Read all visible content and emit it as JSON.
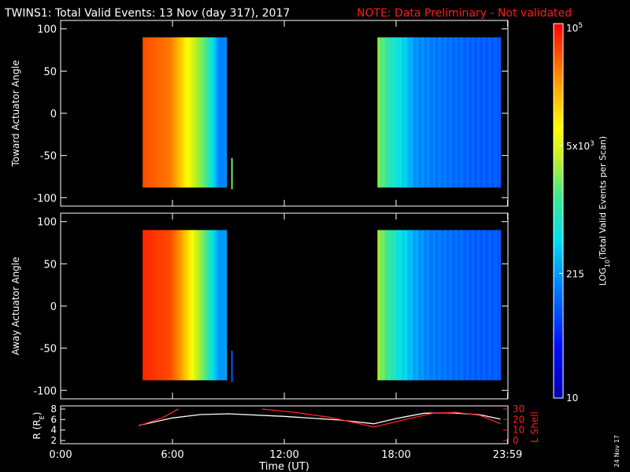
{
  "header": {
    "title": "TWINS1: Total Valid Events: 13 Nov (day 317), 2017",
    "note": "NOTE: Data Preliminary - Not validated"
  },
  "colors": {
    "note": "#ff1a1a",
    "lshell": "#ff2020",
    "radius": "#ffffff",
    "frame": "#ffffff"
  },
  "colorbar": {
    "title_prefix": "LOG",
    "title_sub": "10",
    "title_suffix": "(Total Valid Events per Scan)",
    "ticks": [
      {
        "label": "10",
        "value": 10
      },
      {
        "label": "215",
        "value": 215
      },
      {
        "label": "5x10",
        "sup": "3",
        "value": 5000
      },
      {
        "label": "10",
        "sup": "5",
        "value": 100000
      }
    ],
    "range": [
      10,
      100000
    ],
    "scale": "log"
  },
  "chart_data": [
    {
      "type": "heatmap",
      "ylabel": "Toward Actuator Angle",
      "ylim": [
        -110,
        110
      ],
      "yticks": [
        100,
        50,
        0,
        -50,
        -100
      ],
      "xlim": [
        0,
        24
      ],
      "data_ranges_hours": [
        [
          4.4,
          8.9
        ],
        [
          17.0,
          23.6
        ]
      ],
      "angle_range": [
        -88,
        90
      ],
      "marker": {
        "hour": 9.15,
        "y_range": [
          -90,
          -53
        ]
      },
      "column_profile": [
        [
          4.4,
          4.7
        ],
        [
          5.9,
          4.5
        ],
        [
          6.4,
          4.2
        ],
        [
          6.9,
          3.8
        ],
        [
          7.3,
          3.5
        ],
        [
          7.8,
          3.2
        ],
        [
          8.1,
          2.8
        ],
        [
          8.5,
          2.2
        ],
        [
          17.0,
          3.4
        ],
        [
          17.6,
          3.0
        ],
        [
          18.3,
          2.7
        ],
        [
          19.0,
          2.3
        ],
        [
          19.8,
          2.2
        ],
        [
          21.0,
          2.1
        ],
        [
          22.4,
          2.0
        ],
        [
          23.6,
          2.0
        ]
      ]
    },
    {
      "type": "heatmap",
      "ylabel": "Away Actuator Angle",
      "ylim": [
        -110,
        110
      ],
      "yticks": [
        100,
        50,
        0,
        -50,
        -100
      ],
      "xlim": [
        0,
        24
      ],
      "data_ranges_hours": [
        [
          4.4,
          8.9
        ],
        [
          17.0,
          23.6
        ]
      ],
      "angle_range": [
        -88,
        90
      ],
      "marker": {
        "hour": 9.15,
        "y_range": [
          -90,
          -53
        ]
      },
      "column_profile": [
        [
          4.4,
          4.85
        ],
        [
          5.9,
          4.7
        ],
        [
          6.4,
          4.4
        ],
        [
          6.9,
          4.0
        ],
        [
          7.3,
          3.6
        ],
        [
          7.8,
          3.2
        ],
        [
          8.1,
          2.8
        ],
        [
          8.5,
          2.3
        ],
        [
          17.0,
          3.5
        ],
        [
          17.6,
          3.1
        ],
        [
          18.3,
          2.7
        ],
        [
          19.0,
          2.4
        ],
        [
          19.8,
          2.2
        ],
        [
          21.0,
          2.1
        ],
        [
          22.4,
          2.0
        ],
        [
          23.6,
          2.0
        ]
      ]
    },
    {
      "type": "line",
      "ylabel": "R (R",
      "ylabel_sub": "E",
      "ylabel_end": ")",
      "ylim": [
        2,
        8
      ],
      "yticks": [
        8,
        6,
        4,
        2
      ],
      "y2label": "L Shell",
      "y2lim": [
        0,
        30
      ],
      "y2ticks": [
        30,
        20,
        10,
        0
      ],
      "xlabel": "Time (UT)",
      "xticks": [
        {
          "hour": 0,
          "label": "0:00"
        },
        {
          "hour": 6,
          "label": "6:00"
        },
        {
          "hour": 12,
          "label": "12:00"
        },
        {
          "hour": 18,
          "label": "18:00"
        },
        {
          "hour": 23.98,
          "label": "23:59"
        }
      ],
      "series": [
        {
          "axis": "left",
          "points": [
            [
              4.2,
              4.9
            ],
            [
              6.0,
              6.3
            ],
            [
              7.5,
              6.95
            ],
            [
              9.0,
              7.1
            ],
            [
              12.0,
              6.6
            ],
            [
              15.0,
              5.9
            ],
            [
              16.8,
              5.2
            ],
            [
              18.0,
              6.2
            ],
            [
              19.5,
              7.2
            ],
            [
              21.0,
              7.3
            ],
            [
              22.5,
              6.9
            ],
            [
              23.6,
              6.1
            ]
          ]
        },
        {
          "axis": "right",
          "segments": [
            [
              [
                4.2,
                14
              ],
              [
                5.5,
                22
              ],
              [
                6.3,
                30
              ]
            ],
            [
              [
                10.8,
                30
              ],
              [
                12.5,
                27
              ],
              [
                14.5,
                22
              ],
              [
                16.8,
                13
              ]
            ],
            [
              [
                16.8,
                13
              ],
              [
                18.5,
                20
              ],
              [
                20.0,
                26
              ],
              [
                21.2,
                27
              ],
              [
                22.5,
                24
              ],
              [
                23.6,
                16
              ]
            ]
          ]
        }
      ]
    }
  ],
  "footer": {
    "date_stamp": "24 Nov 17"
  }
}
